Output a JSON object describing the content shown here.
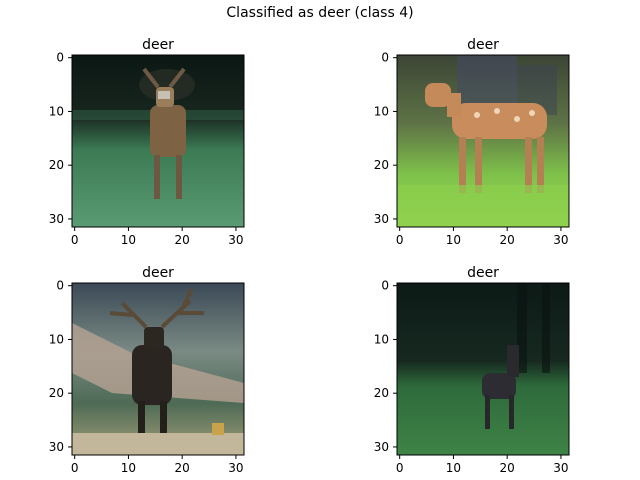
{
  "figure": {
    "suptitle": "Classified as deer (class 4)"
  },
  "panels": [
    {
      "title": "deer",
      "scene": "standing-deer-green-field-dark-background",
      "colors": {
        "top": "#0f1a17",
        "bottom": "#3f7f5a",
        "subject": "#8a6a45"
      }
    },
    {
      "title": "deer",
      "scene": "spotted-fawn-in-green-grass",
      "colors": {
        "top": "#5a6f4a",
        "bottom": "#8fd04a",
        "subject": "#c68a5a"
      }
    },
    {
      "title": "deer",
      "scene": "elk-with-antlers-in-front-of-hills",
      "colors": {
        "top": "#4a5c66",
        "bottom": "#7d8f5a",
        "subject": "#2a2622"
      }
    },
    {
      "title": "deer",
      "scene": "dark-deer-in-grass-with-forest-background",
      "colors": {
        "top": "#12201c",
        "bottom": "#2f6a3a",
        "subject": "#2a2a2e"
      }
    }
  ],
  "axis": {
    "x_ticks": [
      0,
      10,
      20,
      30
    ],
    "y_ticks": [
      0,
      10,
      20,
      30
    ],
    "image_extent": [
      -0.5,
      31.5
    ]
  }
}
